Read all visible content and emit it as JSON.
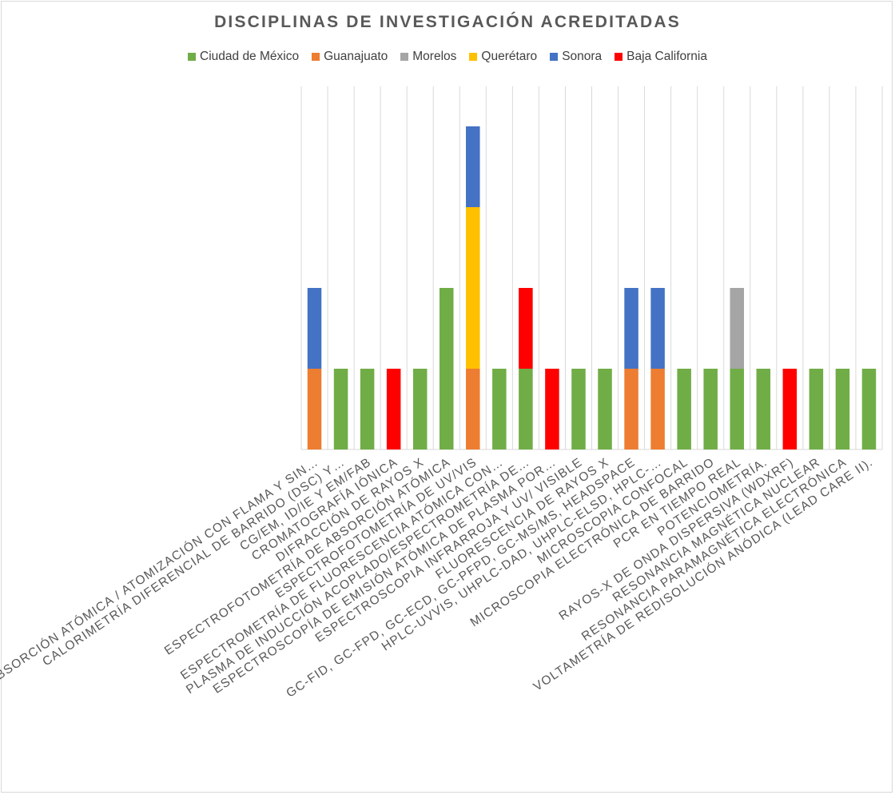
{
  "chart_data": {
    "type": "bar",
    "stacked": true,
    "title": "DISCIPLINAS DE INVESTIGACIÓN ACREDITADAS",
    "legend_position": "top",
    "grid": "vertical",
    "ylim": [
      0,
      4
    ],
    "categories": [
      "ABSORCIÓN ATÓMICA / ATOMIZACIÓN CON FLAMA Y SIN…",
      "CALORIMETRÍA DIFERENCIAL DE BARRIDO (DSC) Y…",
      "CG/EM, ID/IE Y EM/FAB",
      "CROMATOGRAFÍA IÓNICA",
      "DIFRACCIÓN DE RAYOS X",
      "ESPECTROFOTOMETRÍA DE ABSORCIÓN ATÓMICA",
      "ESPECTROFOTOMETRÍA DE UV/VIS",
      "ESPECTROMETRÍA DE FLUORESCENCIA ATÓMICA CON…",
      "PLASMA DE INDUCCIÓN ACOPLADO/ESPECTROMETRÍA DE…",
      "ESPECTROSCOPÍA DE EMISIÓN ATÓMICA DE PLASMA POR…",
      "ESPECTROSCOPIA INFRARROJA Y UV/ VISIBLE",
      "FLUORESCENCIA DE RAYOS X",
      "GC-FID, GC-FPD, GC-ECD, GC-PFPD, GC-MS/MS, HEADSPACE",
      "HPLC-UVVIS, UHPLC-DAD, UHPLC-ELSD, HPLC-…",
      "MICROSCOPIA CONFOCAL",
      "MICROSCOPIA ELECTRÓNICA DE BARRIDO",
      "PCR EN TIEMPO REAL",
      "POTENCIOMETRÍA.",
      "RAYOS-X DE ONDA DISPERSIVA (WDXRF)",
      "RESONANCIA MAGNÉTICA NUCLEAR",
      "RESONANCIA PARAMAGNÉTICA ELECTRÓNICA",
      "VOLTAMETRÍA DE REDISOLUCIÓN ANÓDICA (LEAD CARE II)."
    ],
    "series": [
      {
        "name": "Ciudad de México",
        "color": "#70ad47",
        "values": [
          0,
          1,
          1,
          0,
          1,
          2,
          0,
          1,
          1,
          0,
          1,
          1,
          0,
          0,
          1,
          1,
          1,
          1,
          0,
          1,
          1,
          1
        ]
      },
      {
        "name": "Guanajuato",
        "color": "#ed7d31",
        "values": [
          1,
          0,
          0,
          0,
          0,
          0,
          1,
          0,
          0,
          0,
          0,
          0,
          1,
          1,
          0,
          0,
          0,
          0,
          0,
          0,
          0,
          0
        ]
      },
      {
        "name": "Morelos",
        "color": "#a5a5a5",
        "values": [
          0,
          0,
          0,
          0,
          0,
          0,
          0,
          0,
          0,
          0,
          0,
          0,
          0,
          0,
          0,
          0,
          1,
          0,
          0,
          0,
          0,
          0
        ]
      },
      {
        "name": "Querétaro",
        "color": "#ffc000",
        "values": [
          0,
          0,
          0,
          0,
          0,
          0,
          2,
          0,
          0,
          0,
          0,
          0,
          0,
          0,
          0,
          0,
          0,
          0,
          0,
          0,
          0,
          0
        ]
      },
      {
        "name": "Sonora",
        "color": "#4472c4",
        "values": [
          1,
          0,
          0,
          0,
          0,
          0,
          1,
          0,
          0,
          0,
          0,
          0,
          1,
          1,
          0,
          0,
          0,
          0,
          0,
          0,
          0,
          0
        ]
      },
      {
        "name": "Baja California",
        "color": "#ff0000",
        "values": [
          0,
          0,
          0,
          1,
          0,
          0,
          0,
          0,
          1,
          1,
          0,
          0,
          0,
          0,
          0,
          0,
          0,
          0,
          1,
          0,
          0,
          0
        ]
      }
    ]
  }
}
